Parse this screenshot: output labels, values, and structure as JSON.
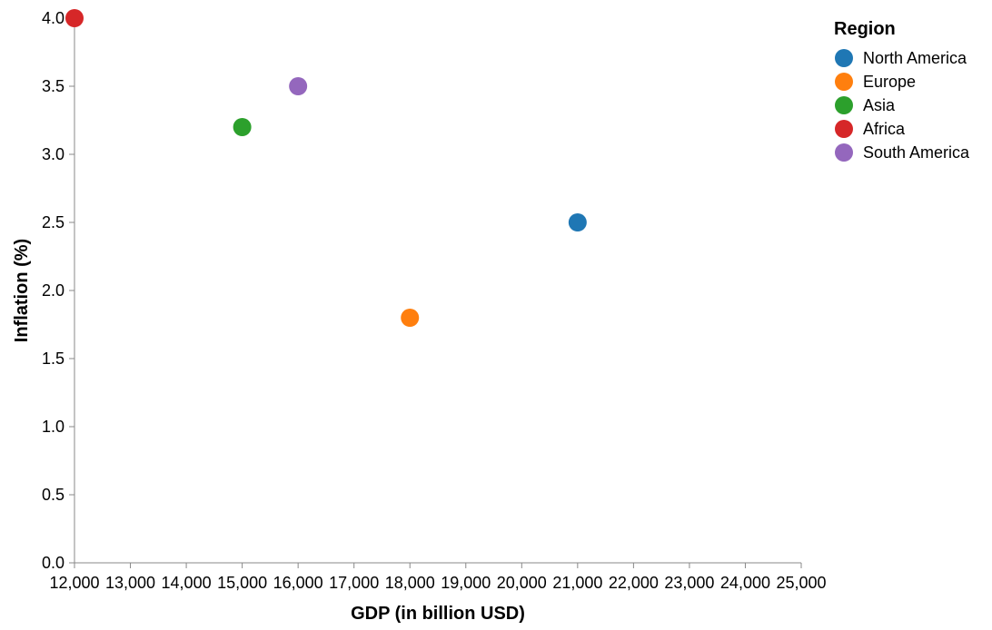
{
  "chart_data": {
    "type": "scatter",
    "xlabel": "GDP (in billion USD)",
    "ylabel": "Inflation (%)",
    "xlim": [
      12000,
      25000
    ],
    "ylim": [
      0,
      4
    ],
    "x_ticks": [
      "12,000",
      "13,000",
      "14,000",
      "15,000",
      "16,000",
      "17,000",
      "18,000",
      "19,000",
      "20,000",
      "21,000",
      "22,000",
      "23,000",
      "24,000",
      "25,000"
    ],
    "x_tick_values": [
      12000,
      13000,
      14000,
      15000,
      16000,
      17000,
      18000,
      19000,
      20000,
      21000,
      22000,
      23000,
      24000,
      25000
    ],
    "y_ticks": [
      "0.0",
      "0.5",
      "1.0",
      "1.5",
      "2.0",
      "2.5",
      "3.0",
      "3.5",
      "4.0"
    ],
    "y_tick_values": [
      0,
      0.5,
      1.0,
      1.5,
      2.0,
      2.5,
      3.0,
      3.5,
      4.0
    ],
    "legend": {
      "title": "Region",
      "placement": "top-right"
    },
    "series": [
      {
        "name": "North America",
        "color": "#1f77b4",
        "points": [
          {
            "x": 21000,
            "y": 2.5
          }
        ]
      },
      {
        "name": "Europe",
        "color": "#ff7f0e",
        "points": [
          {
            "x": 18000,
            "y": 1.8
          }
        ]
      },
      {
        "name": "Asia",
        "color": "#2ca02c",
        "points": [
          {
            "x": 15000,
            "y": 3.2
          }
        ]
      },
      {
        "name": "Africa",
        "color": "#d62728",
        "points": [
          {
            "x": 12000,
            "y": 4.0
          }
        ]
      },
      {
        "name": "South America",
        "color": "#9467bd",
        "points": [
          {
            "x": 16000,
            "y": 3.5
          }
        ]
      }
    ],
    "grid": false
  }
}
